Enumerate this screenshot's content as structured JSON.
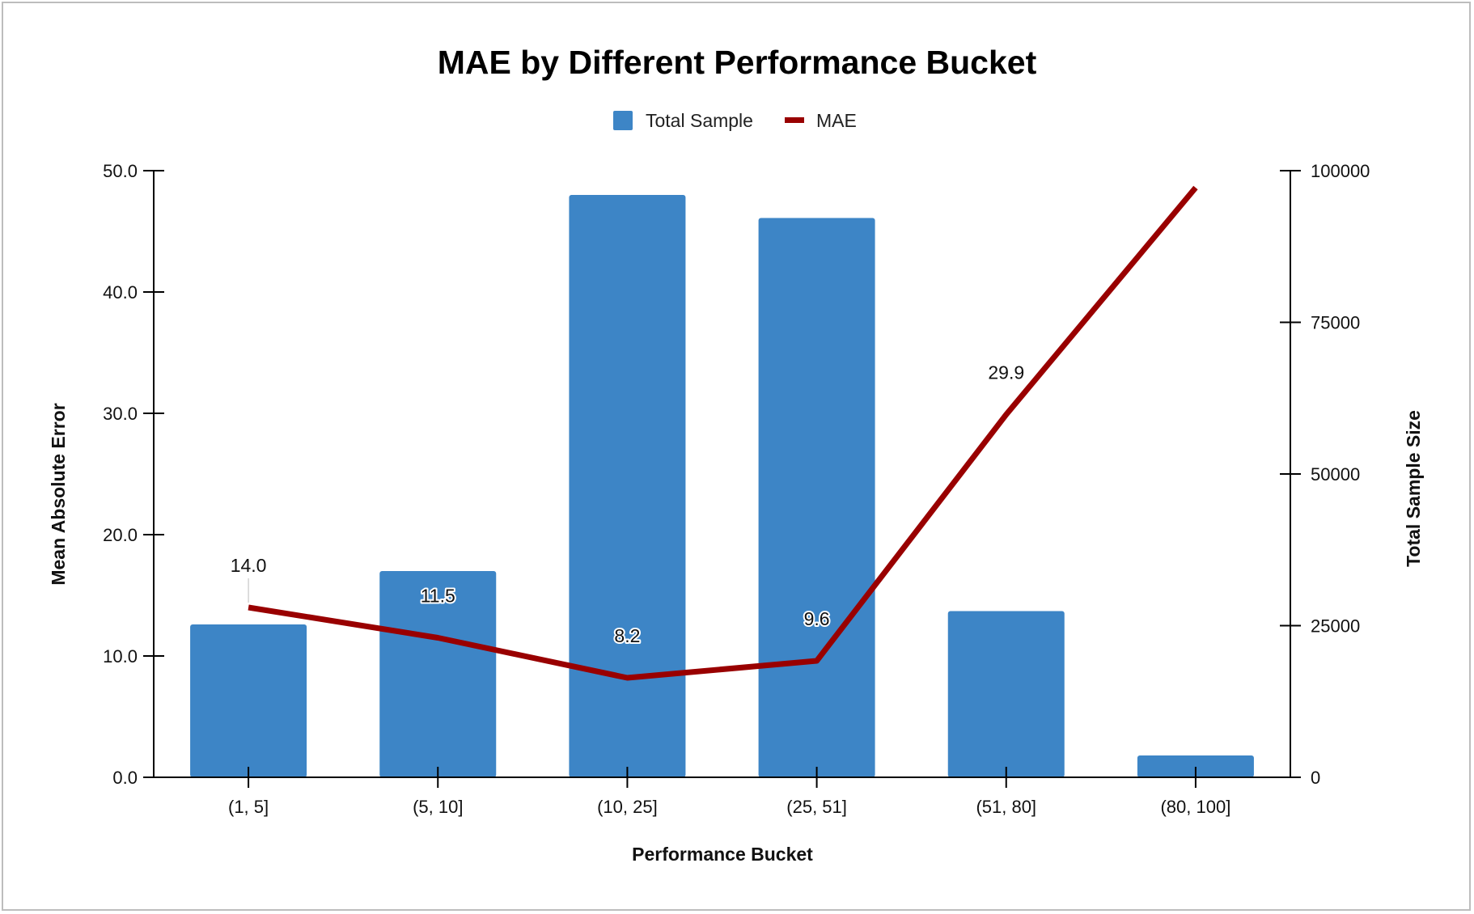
{
  "chart_data": {
    "type": "bar+line",
    "title": "MAE by Different Performance Bucket",
    "xlabel": "Performance Bucket",
    "ylabel_left": "Mean Absolute Error",
    "ylabel_right": "Total Sample Size",
    "categories": [
      "(1, 5]",
      "(5, 10]",
      "(10, 25]",
      "(25, 51]",
      "(51, 80]",
      "(80, 100]"
    ],
    "series": [
      {
        "name": "Total Sample",
        "kind": "bar",
        "axis": "right",
        "color": "#3d85c6",
        "values": [
          25200,
          34000,
          96000,
          92200,
          27400,
          3600
        ]
      },
      {
        "name": "MAE",
        "kind": "line",
        "axis": "left",
        "color": "#990000",
        "values": [
          14.0,
          11.5,
          8.2,
          9.6,
          29.9,
          48.6
        ],
        "labels": [
          "14.0",
          "11.5",
          "8.2",
          "9.6",
          "29.9",
          ""
        ]
      }
    ],
    "ylim_left": [
      0,
      50
    ],
    "yticks_left": [
      "0.0",
      "10.0",
      "20.0",
      "30.0",
      "40.0",
      "50.0"
    ],
    "ylim_right": [
      0,
      100000
    ],
    "yticks_right": [
      "0",
      "25000",
      "50000",
      "75000",
      "100000"
    ],
    "legend_position": "top-center",
    "grid": false
  }
}
